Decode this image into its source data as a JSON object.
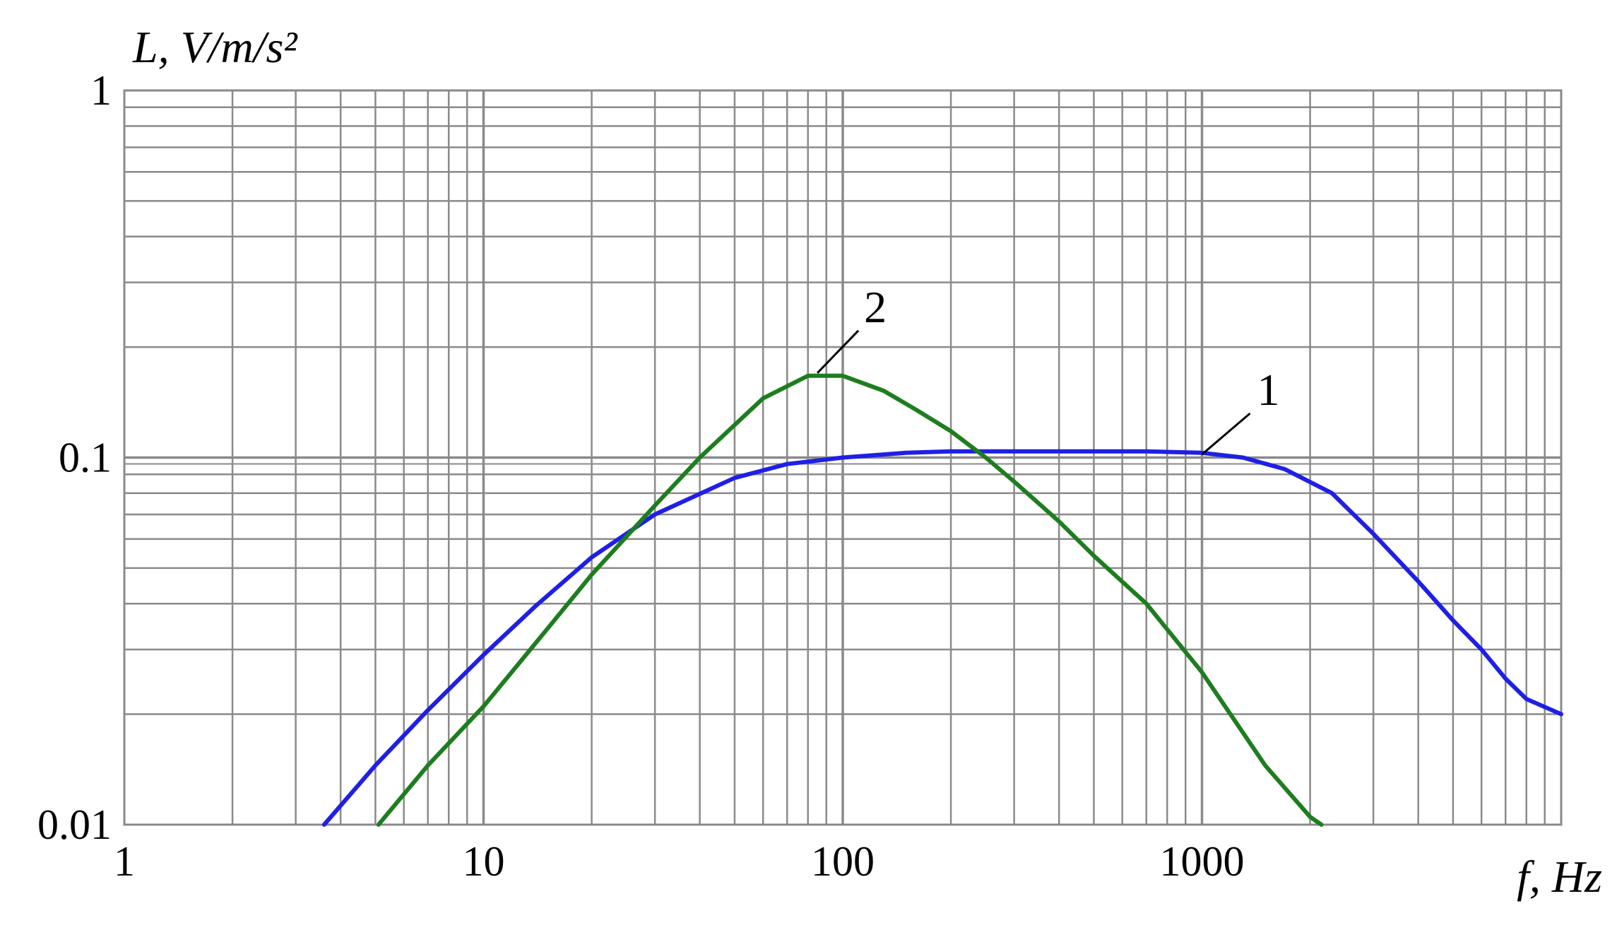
{
  "chart_data": {
    "type": "line",
    "xscale": "log",
    "yscale": "log",
    "xlim": [
      1,
      10000
    ],
    "ylim": [
      0.01,
      1
    ],
    "grid": true,
    "xlabel": "f, Hz",
    "ylabel": "L, V/m/s²",
    "x_ticks": [
      {
        "value": 1,
        "label": "1"
      },
      {
        "value": 10,
        "label": "10"
      },
      {
        "value": 100,
        "label": "100"
      },
      {
        "value": 1000,
        "label": "1000"
      }
    ],
    "y_ticks": [
      {
        "value": 0.01,
        "label": "0.01"
      },
      {
        "value": 0.1,
        "label": "0.1"
      },
      {
        "value": 1,
        "label": "1"
      }
    ],
    "series": [
      {
        "label": "1",
        "color": "#1f1fe6",
        "label_anchor": {
          "x": 1000,
          "y": 0.102
        },
        "x": [
          3.6,
          5,
          7,
          10,
          14,
          20,
          30,
          50,
          70,
          100,
          150,
          200,
          300,
          500,
          700,
          1000,
          1300,
          1700,
          2300,
          3000,
          4000,
          5000,
          6000,
          7000,
          8000,
          10000
        ],
        "y": [
          0.01,
          0.0145,
          0.0205,
          0.029,
          0.0395,
          0.0535,
          0.07,
          0.088,
          0.096,
          0.1,
          0.103,
          0.104,
          0.104,
          0.104,
          0.104,
          0.103,
          0.1,
          0.093,
          0.08,
          0.062,
          0.046,
          0.036,
          0.03,
          0.025,
          0.022,
          0.02
        ]
      },
      {
        "label": "2",
        "color": "#1e7d1e",
        "label_anchor": {
          "x": 85,
          "y": 0.17
        },
        "x": [
          5.1,
          7,
          10,
          15,
          20,
          30,
          40,
          60,
          80,
          100,
          130,
          160,
          200,
          250,
          300,
          400,
          500,
          700,
          1000,
          1500,
          2000,
          2150
        ],
        "y": [
          0.01,
          0.0145,
          0.021,
          0.034,
          0.048,
          0.074,
          0.1,
          0.145,
          0.167,
          0.167,
          0.152,
          0.135,
          0.118,
          0.1,
          0.086,
          0.067,
          0.054,
          0.04,
          0.026,
          0.0145,
          0.0105,
          0.01
        ]
      }
    ]
  }
}
